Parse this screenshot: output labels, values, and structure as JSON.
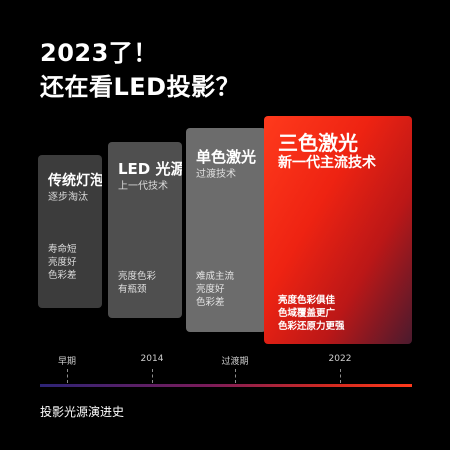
{
  "headline": {
    "line1": "2023了！",
    "line2": "还在看LED投影？"
  },
  "cards": [
    {
      "title": "传统灯泡",
      "subtitle": "逐步淘汰",
      "features": [
        "寿命短",
        "亮度好",
        "色彩差"
      ],
      "color": "#3c3c3c"
    },
    {
      "title": "LED 光源",
      "subtitle": "上一代技术",
      "features": [
        "亮度色彩",
        "有瓶颈"
      ],
      "color": "#4f4f4f"
    },
    {
      "title": "单色激光",
      "subtitle": "过渡技术",
      "features": [
        "难成主流",
        "亮度好",
        "色彩差"
      ],
      "color": "#6c6c6c"
    },
    {
      "title": "三色激光",
      "subtitle": "新一代主流技术",
      "features": [
        "亮度色彩俱佳",
        "色域覆盖更广",
        "色彩还原力更强"
      ],
      "color": "#ee2312"
    }
  ],
  "timeline": {
    "labels": [
      "早期",
      "2014",
      "过渡期",
      "2022"
    ]
  },
  "caption": "投影光源演进史"
}
